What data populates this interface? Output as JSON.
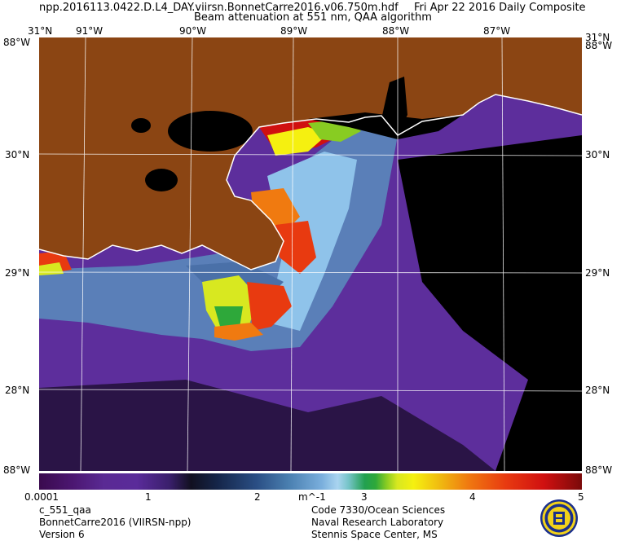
{
  "header": {
    "filename": "npp.2016113.0422.D.L4_DAY.viirsn.BonnetCarre2016.v06.750m.hdf",
    "date": "Fri Apr 22 2016 Daily Composite",
    "subtitle_1": "Beam attenuation at 551 nm, QAA algorithm"
  },
  "map": {
    "lon_labels": [
      "91°W",
      "90°W",
      "89°W",
      "88°W",
      "87°W"
    ],
    "lat_labels": [
      "30°N",
      "29°N",
      "28°N"
    ],
    "corner_top_left": "31°N",
    "corner_top_right": "31°N",
    "corner_side_top": "88°W",
    "corner_bottom": "88°W",
    "colors": {
      "land": "#8B4513",
      "nodata": "#000000",
      "water_low": "#6a3aa8",
      "water_mid": "#7ab2e0",
      "water_high": "#e83a10",
      "coastline": "#ffffff",
      "gridline": "#ffffff"
    }
  },
  "colorbar": {
    "ticks": [
      "0.0001",
      "1",
      "2",
      "3",
      "4",
      "5"
    ],
    "unit": "m^-1"
  },
  "footer": {
    "left": [
      "c_551_qaa",
      "BonnetCarre2016 (VIIRSN-npp)",
      "Version 6"
    ],
    "right": [
      "Code 7330/Ocean Sciences",
      "Naval Research Laboratory",
      "Stennis Space Center, MS"
    ]
  }
}
